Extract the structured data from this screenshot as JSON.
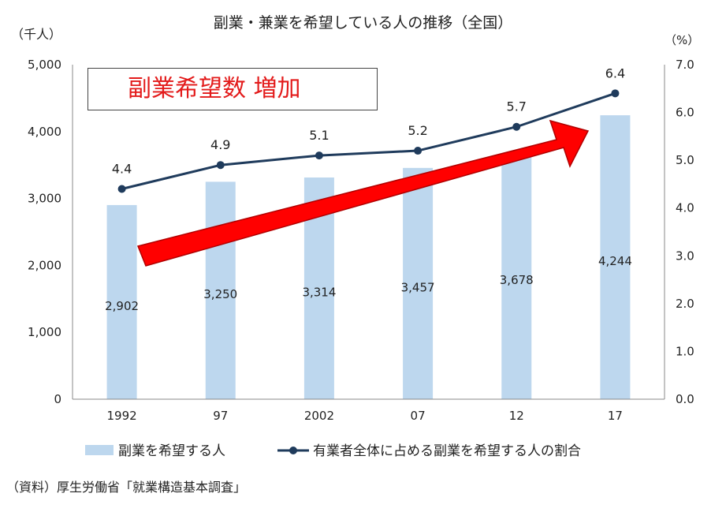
{
  "chart_data": {
    "type": "bar",
    "title": "副業・兼業を希望している人の推移（全国）",
    "categories": [
      "1992",
      "97",
      "2002",
      "07",
      "12",
      "17"
    ],
    "series": [
      {
        "name": "副業を希望する人",
        "type": "bar",
        "axis": "left",
        "values": [
          2902,
          3250,
          3314,
          3457,
          3678,
          4244
        ],
        "labels": [
          "2,902",
          "3,250",
          "3,314",
          "3,457",
          "3,678",
          "4,244"
        ],
        "color": "#bdd7ee"
      },
      {
        "name": "有業者全体に占める副業を希望する人の割合",
        "type": "line",
        "axis": "right",
        "values": [
          4.4,
          4.9,
          5.1,
          5.2,
          5.7,
          6.4
        ],
        "labels": [
          "4.4",
          "4.9",
          "5.1",
          "5.2",
          "5.7",
          "6.4"
        ],
        "color": "#1f3b5c"
      }
    ],
    "left_axis": {
      "unit": "（千人）",
      "ylim": [
        0,
        5000
      ],
      "ticks": [
        0,
        1000,
        2000,
        3000,
        4000,
        5000
      ],
      "tick_labels": [
        "0",
        "1,000",
        "2,000",
        "3,000",
        "4,000",
        "5,000"
      ]
    },
    "right_axis": {
      "unit": "（%）",
      "ylim": [
        0,
        7
      ],
      "ticks": [
        0,
        1,
        2,
        3,
        4,
        5,
        6,
        7
      ],
      "tick_labels": [
        "0.0",
        "1.0",
        "2.0",
        "3.0",
        "4.0",
        "5.0",
        "6.0",
        "7.0"
      ]
    },
    "grid": false,
    "legend_position": "bottom"
  },
  "annotation": {
    "text": "副業希望数 増加",
    "color": "#e31b1b",
    "arrow_color": "#ff0000"
  },
  "source": "（資料）厚生労働省「就業構造基本調査」"
}
